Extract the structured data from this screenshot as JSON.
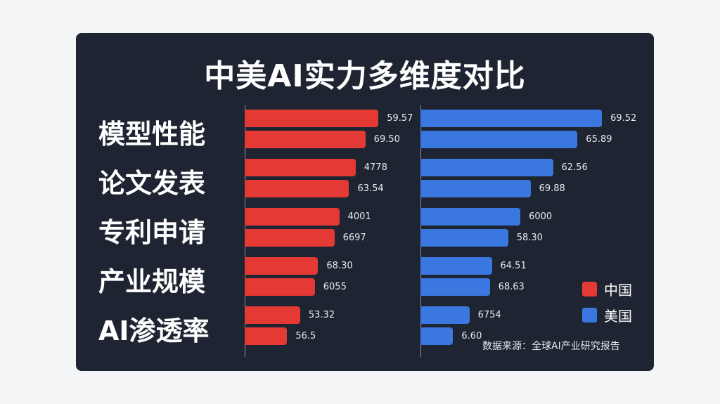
{
  "chart_data": {
    "type": "bar",
    "orientation": "horizontal",
    "title": "中美AI实力多维度对比",
    "categories": [
      "模型性能",
      "论文发表",
      "专利申请",
      "产业规模",
      "AI渗透率"
    ],
    "series": [
      {
        "name": "中国",
        "color": "#e53935",
        "value_labels": [
          [
            "59.57",
            "69.50"
          ],
          [
            "4778",
            "63.54"
          ],
          [
            "4001",
            "6697"
          ],
          [
            "68.30",
            "6055"
          ],
          [
            "53.32",
            "56.5"
          ]
        ],
        "bar_extent_pct": [
          [
            82,
            74
          ],
          [
            68,
            64
          ],
          [
            58,
            55
          ],
          [
            45,
            43
          ],
          [
            34,
            26
          ]
        ]
      },
      {
        "name": "美国",
        "color": "#3a78e0",
        "value_labels": [
          [
            "69.52",
            "65.89"
          ],
          [
            "62.56",
            "69.88"
          ],
          [
            "6000",
            "58.30"
          ],
          [
            "64.51",
            "68.63"
          ],
          [
            "6754",
            "6.60"
          ]
        ],
        "bar_extent_pct": [
          [
            89,
            77
          ],
          [
            65,
            54
          ],
          [
            49,
            43
          ],
          [
            35,
            34
          ],
          [
            24,
            16
          ]
        ]
      }
    ],
    "legend": {
      "placement": "bottom-right",
      "entries": [
        "中国",
        "美国"
      ]
    },
    "source": "数据来源：全球AI产业研究报告",
    "grid": false
  }
}
